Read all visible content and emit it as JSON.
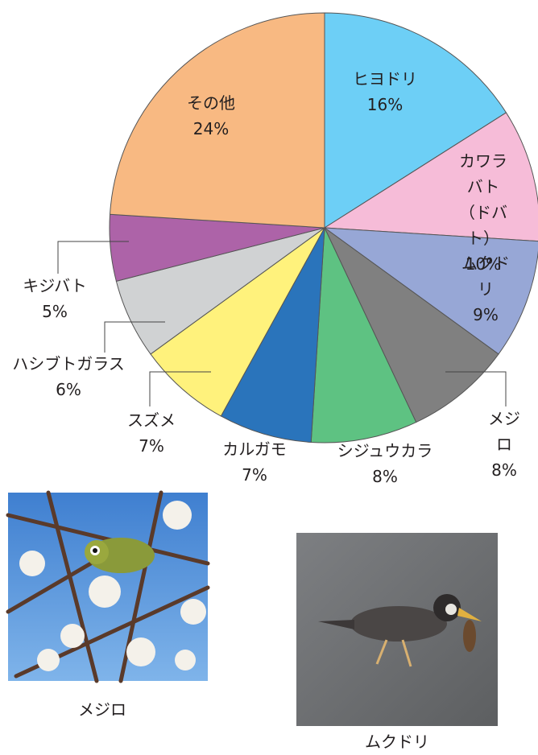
{
  "chart_data": {
    "type": "pie",
    "categories": [
      "ヒヨドリ",
      "カワラバト\n（ドバト）",
      "ムクドリ",
      "メジロ",
      "シジュウカラ",
      "カルガモ",
      "スズメ",
      "ハシブトガラス",
      "キジバト",
      "その他"
    ],
    "values": [
      16,
      10,
      9,
      8,
      8,
      7,
      7,
      6,
      5,
      24
    ],
    "value_labels": [
      "16%",
      "10%",
      "9%",
      "8%",
      "8%",
      "7%",
      "7%",
      "6%",
      "5%",
      "24%"
    ],
    "colors": [
      "#6dcff6",
      "#f6bcd8",
      "#97a7d6",
      "#808080",
      "#5ec282",
      "#2a74bb",
      "#fff27c",
      "#d0d2d3",
      "#ad63a8",
      "#f8b982"
    ]
  },
  "photos": [
    {
      "caption": "メジロ"
    },
    {
      "caption": "ムクドリ"
    }
  ]
}
